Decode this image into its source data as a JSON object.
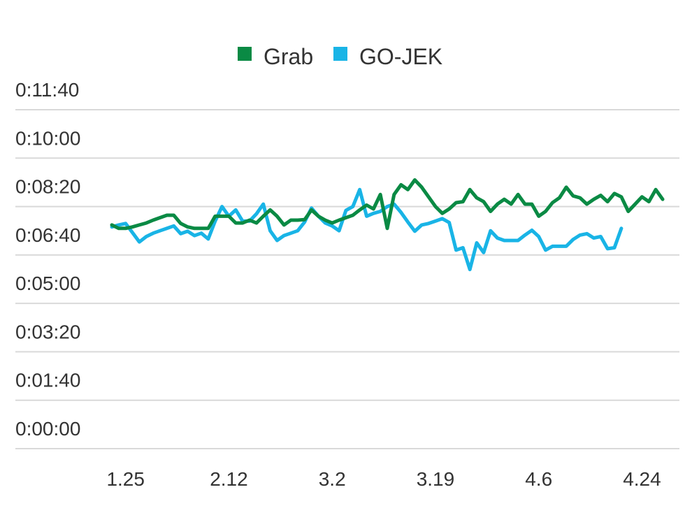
{
  "chart_data": {
    "type": "line",
    "title": "",
    "xlabel": "",
    "ylabel": "",
    "y_unit": "seconds",
    "ylim": [
      0,
      700
    ],
    "y_ticks": [
      {
        "value": 0,
        "label": "0:00:00"
      },
      {
        "value": 100,
        "label": "0:01:40"
      },
      {
        "value": 200,
        "label": "0:03:20"
      },
      {
        "value": 300,
        "label": "0:05:00"
      },
      {
        "value": 400,
        "label": "0:06:40"
      },
      {
        "value": 500,
        "label": "0:08:20"
      },
      {
        "value": 600,
        "label": "0:10:00"
      },
      {
        "value": 700,
        "label": "0:11:40"
      }
    ],
    "x_ticks": [
      {
        "index": 2,
        "label": "1.25"
      },
      {
        "index": 17,
        "label": "2.12"
      },
      {
        "index": 32,
        "label": "3.2"
      },
      {
        "index": 47,
        "label": "3.19"
      },
      {
        "index": 62,
        "label": "4.6"
      },
      {
        "index": 77,
        "label": "4.24"
      }
    ],
    "grid": true,
    "legend": {
      "position": "top-center"
    },
    "series": [
      {
        "name": "Grab",
        "color": "#0a8a44",
        "values": [
          462,
          455,
          455,
          458,
          462,
          466,
          472,
          477,
          482,
          482,
          465,
          458,
          455,
          455,
          455,
          480,
          480,
          480,
          466,
          466,
          472,
          466,
          480,
          493,
          480,
          462,
          472,
          472,
          473,
          493,
          480,
          472,
          466,
          472,
          477,
          482,
          493,
          503,
          495,
          525,
          455,
          525,
          545,
          535,
          555,
          540,
          520,
          500,
          486,
          495,
          508,
          510,
          535,
          518,
          510,
          490,
          505,
          515,
          505,
          525,
          505,
          505,
          480,
          490,
          508,
          518,
          540,
          522,
          518,
          505,
          515,
          523,
          510,
          527,
          520,
          490,
          505,
          520,
          510,
          535,
          515
        ]
      },
      {
        "name": "GO-JEK",
        "color": "#19b4e6",
        "values": [
          458,
          462,
          465,
          446,
          427,
          438,
          445,
          450,
          455,
          460,
          444,
          449,
          440,
          445,
          433,
          470,
          500,
          480,
          493,
          470,
          470,
          485,
          505,
          450,
          430,
          440,
          445,
          450,
          468,
          497,
          480,
          466,
          460,
          450,
          492,
          500,
          535,
          480,
          486,
          490,
          500,
          505,
          488,
          468,
          449,
          462,
          465,
          470,
          475,
          467,
          410,
          415,
          370,
          425,
          405,
          450,
          435,
          430,
          430,
          430,
          441,
          451,
          438,
          410,
          418,
          418,
          418,
          432,
          441,
          444,
          435,
          438,
          413,
          415,
          455
        ]
      }
    ]
  }
}
